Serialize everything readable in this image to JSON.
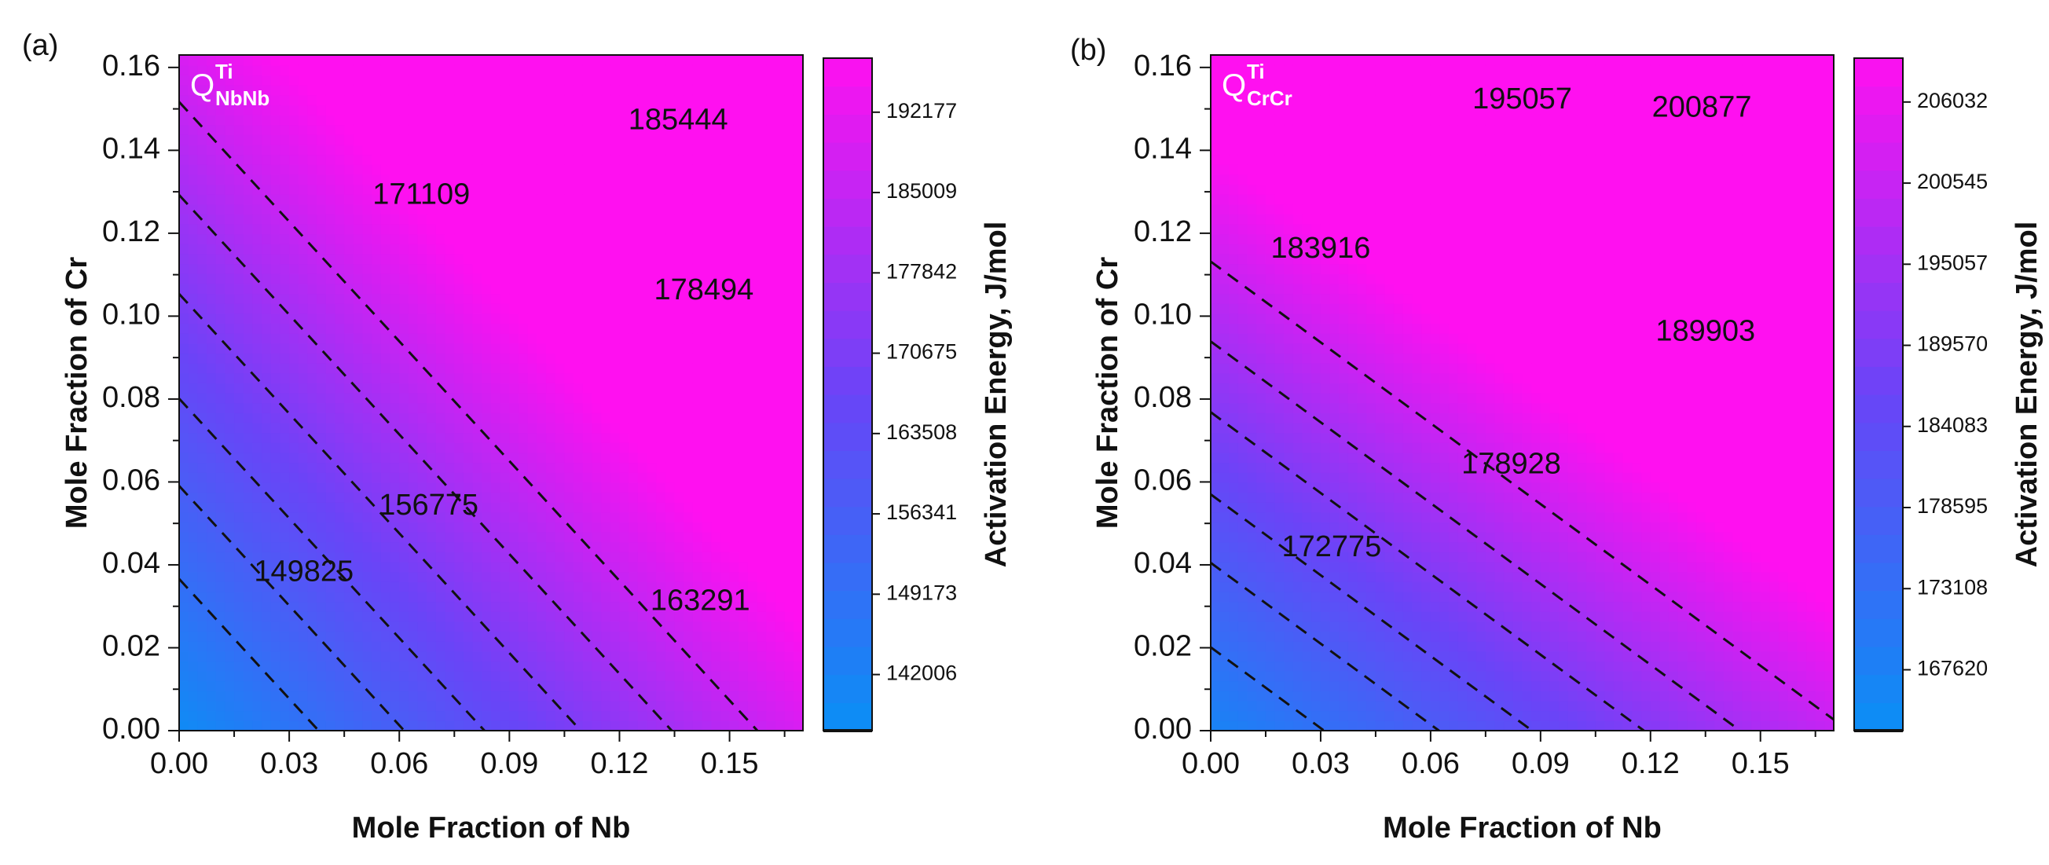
{
  "colors": {
    "low": "#0a8ff5",
    "mid": "#6a44f7",
    "high": "#ff10f0",
    "contour_line": "#111111"
  },
  "chart_data": [
    {
      "type": "heatmap",
      "panel_label": "(a)",
      "quantity_symbol": "Q",
      "superscript": "Ti",
      "subscript": "NbNb",
      "xlabel": "Mole Fraction of Nb",
      "ylabel": "Mole Fraction of  Cr",
      "xlim": [
        0,
        0.17
      ],
      "ylim": [
        0,
        0.163
      ],
      "x_ticks": [
        "0.00",
        "0.03",
        "0.06",
        "0.09",
        "0.12",
        "0.15"
      ],
      "y_ticks": [
        "0.00",
        "0.02",
        "0.04",
        "0.06",
        "0.08",
        "0.10",
        "0.12",
        "0.14",
        "0.16"
      ],
      "colorbar": {
        "title": "Activation Energy, J/mol",
        "ticks": [
          "142006",
          "149173",
          "156341",
          "163508",
          "170675",
          "177842",
          "185009",
          "192177"
        ],
        "range": [
          137000,
          197000
        ]
      },
      "field": {
        "z0": 138500,
        "a": 297900,
        "b": 309500
      },
      "contours": [
        {
          "label": "149825",
          "label_at": [
            0.034,
            0.038
          ]
        },
        {
          "label": "156775",
          "label_at": [
            0.068,
            0.054
          ]
        },
        {
          "label": "163291",
          "label_at": [
            0.142,
            0.031
          ]
        },
        {
          "label": "171109",
          "label_at": [
            0.066,
            0.129
          ]
        },
        {
          "label": "178494",
          "label_at": [
            0.143,
            0.106
          ]
        },
        {
          "label": "185444",
          "label_at": [
            0.136,
            0.147
          ]
        }
      ]
    },
    {
      "type": "heatmap",
      "panel_label": "(b)",
      "quantity_symbol": "Q",
      "superscript": "Ti",
      "subscript": "CrCr",
      "xlabel": "Mole Fraction of Nb",
      "ylabel": "Mole Fraction of  Cr",
      "xlim": [
        0,
        0.17
      ],
      "ylim": [
        0,
        0.163
      ],
      "x_ticks": [
        "0.00",
        "0.03",
        "0.06",
        "0.09",
        "0.12",
        "0.15"
      ],
      "y_ticks": [
        "0.00",
        "0.02",
        "0.04",
        "0.06",
        "0.08",
        "0.10",
        "0.12",
        "0.14",
        "0.16"
      ],
      "colorbar": {
        "title": "Activation Energy, J/mol",
        "ticks": [
          "167620",
          "173108",
          "178595",
          "184083",
          "189570",
          "195057",
          "200545",
          "206032"
        ],
        "range": [
          163500,
          209000
        ]
      },
      "field": {
        "z0": 166700,
        "a": 196300,
        "b": 302000
      },
      "contours": [
        {
          "label": "172775",
          "label_at": [
            0.033,
            0.044
          ]
        },
        {
          "label": "178928",
          "label_at": [
            0.082,
            0.064
          ]
        },
        {
          "label": "183916",
          "label_at": [
            0.03,
            0.116
          ]
        },
        {
          "label": "189903",
          "label_at": [
            0.135,
            0.096
          ]
        },
        {
          "label": "195057",
          "label_at": [
            0.085,
            0.152
          ]
        },
        {
          "label": "200877",
          "label_at": [
            0.134,
            0.15
          ]
        }
      ]
    }
  ]
}
